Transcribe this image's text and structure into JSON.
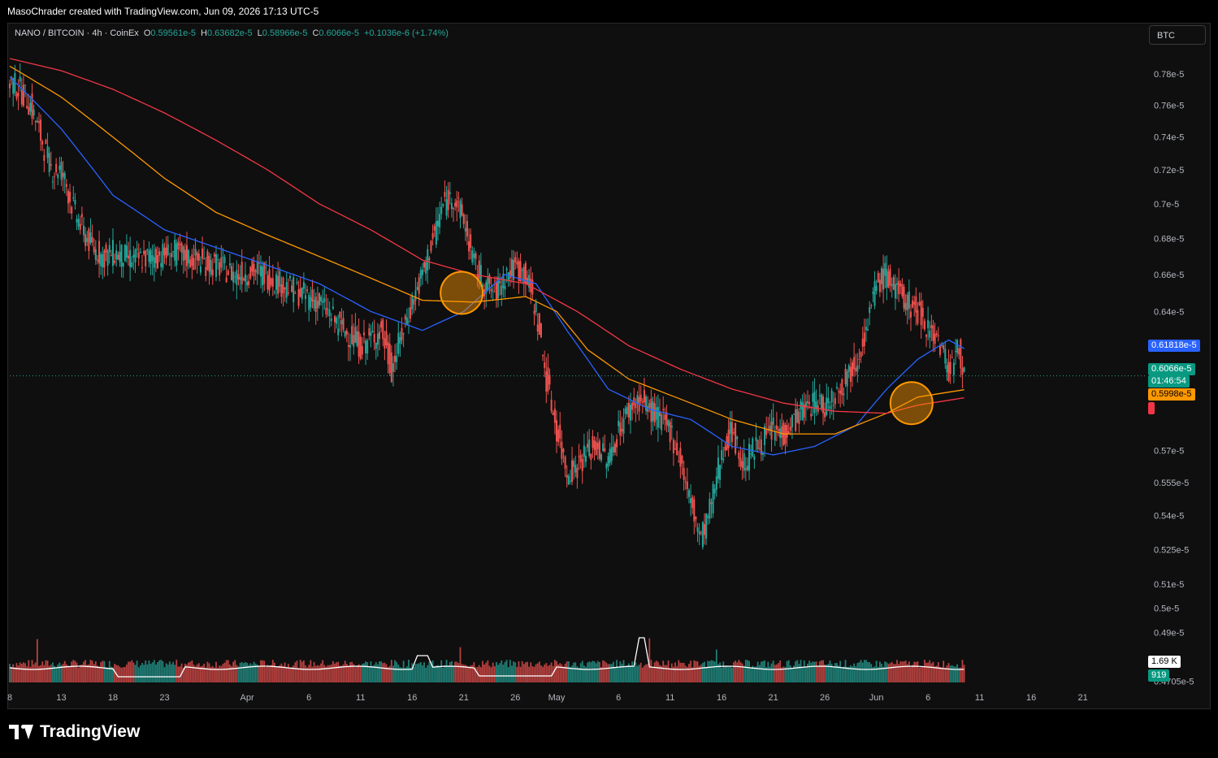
{
  "header": {
    "attribution": "MasoChrader created with TradingView.com, Jun 09, 2026 17:13 UTC-5"
  },
  "legend": {
    "symbol": "NANO / BITCOIN · 4h · CoinEx",
    "o_label": "O",
    "o_value": "0.59561e-5",
    "h_label": "H",
    "h_value": "0.63682e-5",
    "l_label": "L",
    "l_value": "0.58966e-5",
    "c_label": "C",
    "c_value": "0.6066e-5",
    "change": "+0.1036e-6 (+1.74%)"
  },
  "currency_button": "BTC",
  "badges": {
    "ma_blue": "0.61818e-5",
    "last_price": "0.6066e-5",
    "countdown": "01:46:54",
    "ma_orange": "0.5998e-5",
    "ma_red": "0.59581e-5",
    "volume_ma": "1.69 K",
    "volume": "919"
  },
  "colors": {
    "up": "#26a69a",
    "down": "#ef5350",
    "ma_fast": "#2962ff",
    "ma_mid": "#ff9800",
    "ma_slow": "#f23645",
    "highlight": "#ff9800"
  },
  "footer": {
    "brand": "TradingView"
  },
  "chart_data": {
    "type": "candlestick",
    "timeframe": "4h",
    "y_scale": "log",
    "y_ticks": [
      "0.78e-5",
      "0.76e-5",
      "0.74e-5",
      "0.72e-5",
      "0.7e-5",
      "0.68e-5",
      "0.66e-5",
      "0.64e-5",
      "0.57e-5",
      "0.555e-5",
      "0.54e-5",
      "0.525e-5",
      "0.51e-5",
      "0.5e-5",
      "0.49e-5",
      "0.4705e-5"
    ],
    "y_tick_values": [
      0.78,
      0.76,
      0.74,
      0.72,
      0.7,
      0.68,
      0.66,
      0.64,
      0.57,
      0.555,
      0.54,
      0.525,
      0.51,
      0.5,
      0.49,
      0.4705
    ],
    "ylim": [
      0.47,
      0.79
    ],
    "x_ticks": [
      "8",
      "13",
      "18",
      "23",
      "Apr",
      "6",
      "11",
      "16",
      "21",
      "26",
      "May",
      "6",
      "11",
      "16",
      "21",
      "26",
      "Jun",
      "6",
      "11",
      "16",
      "21"
    ],
    "x_tick_days": [
      0,
      5,
      10,
      15,
      23,
      29,
      34,
      39,
      44,
      49,
      53,
      59,
      64,
      69,
      74,
      79,
      84,
      89,
      94,
      99,
      104
    ],
    "x_range_days": [
      0,
      106
    ],
    "last_bar_day": 92.7,
    "series_approx": {
      "description": "Approximate closing-price path (day offset from Mar 8, price in e-5 BTC)",
      "close": [
        [
          0,
          0.775
        ],
        [
          1,
          0.77
        ],
        [
          2,
          0.76
        ],
        [
          3,
          0.74
        ],
        [
          4,
          0.72
        ],
        [
          5,
          0.72
        ],
        [
          6,
          0.7
        ],
        [
          7,
          0.685
        ],
        [
          8,
          0.675
        ],
        [
          9,
          0.67
        ],
        [
          10,
          0.672
        ],
        [
          12,
          0.668
        ],
        [
          14,
          0.67
        ],
        [
          16,
          0.672
        ],
        [
          18,
          0.668
        ],
        [
          20,
          0.665
        ],
        [
          22,
          0.66
        ],
        [
          24,
          0.662
        ],
        [
          26,
          0.656
        ],
        [
          28,
          0.65
        ],
        [
          30,
          0.645
        ],
        [
          32,
          0.632
        ],
        [
          34,
          0.622
        ],
        [
          36,
          0.63
        ],
        [
          37,
          0.61
        ],
        [
          38,
          0.628
        ],
        [
          39,
          0.645
        ],
        [
          40,
          0.66
        ],
        [
          41,
          0.68
        ],
        [
          42,
          0.7
        ],
        [
          43,
          0.705
        ],
        [
          44,
          0.69
        ],
        [
          45,
          0.665
        ],
        [
          46,
          0.655
        ],
        [
          47,
          0.65
        ],
        [
          48,
          0.66
        ],
        [
          49,
          0.664
        ],
        [
          50,
          0.66
        ],
        [
          51,
          0.64
        ],
        [
          52,
          0.605
        ],
        [
          53,
          0.58
        ],
        [
          54,
          0.56
        ],
        [
          55,
          0.563
        ],
        [
          56,
          0.57
        ],
        [
          57,
          0.572
        ],
        [
          58,
          0.565
        ],
        [
          59,
          0.58
        ],
        [
          60,
          0.59
        ],
        [
          61,
          0.595
        ],
        [
          62,
          0.59
        ],
        [
          63,
          0.585
        ],
        [
          64,
          0.58
        ],
        [
          65,
          0.565
        ],
        [
          66,
          0.545
        ],
        [
          67,
          0.53
        ],
        [
          68,
          0.545
        ],
        [
          69,
          0.57
        ],
        [
          70,
          0.58
        ],
        [
          71,
          0.563
        ],
        [
          72,
          0.57
        ],
        [
          73,
          0.575
        ],
        [
          74,
          0.58
        ],
        [
          75,
          0.578
        ],
        [
          76,
          0.585
        ],
        [
          77,
          0.59
        ],
        [
          78,
          0.594
        ],
        [
          79,
          0.592
        ],
        [
          80,
          0.598
        ],
        [
          81,
          0.605
        ],
        [
          82,
          0.615
        ],
        [
          83,
          0.63
        ],
        [
          84,
          0.655
        ],
        [
          85,
          0.66
        ],
        [
          86,
          0.65
        ],
        [
          87,
          0.645
        ],
        [
          88,
          0.64
        ],
        [
          89,
          0.632
        ],
        [
          90,
          0.625
        ],
        [
          91,
          0.61
        ],
        [
          92,
          0.62
        ],
        [
          92.7,
          0.6066
        ]
      ]
    },
    "moving_averages": [
      {
        "color": "#2962ff",
        "points": [
          [
            0,
            0.778
          ],
          [
            5,
            0.745
          ],
          [
            10,
            0.705
          ],
          [
            15,
            0.685
          ],
          [
            20,
            0.675
          ],
          [
            25,
            0.665
          ],
          [
            30,
            0.655
          ],
          [
            35,
            0.64
          ],
          [
            40,
            0.63
          ],
          [
            44,
            0.64
          ],
          [
            48,
            0.66
          ],
          [
            51,
            0.655
          ],
          [
            54,
            0.63
          ],
          [
            58,
            0.6
          ],
          [
            62,
            0.59
          ],
          [
            66,
            0.585
          ],
          [
            70,
            0.572
          ],
          [
            74,
            0.568
          ],
          [
            78,
            0.572
          ],
          [
            82,
            0.582
          ],
          [
            85,
            0.6
          ],
          [
            88,
            0.615
          ],
          [
            91,
            0.625
          ],
          [
            92.7,
            0.62
          ]
        ]
      },
      {
        "color": "#ff9800",
        "points": [
          [
            0,
            0.785
          ],
          [
            5,
            0.765
          ],
          [
            10,
            0.74
          ],
          [
            15,
            0.715
          ],
          [
            20,
            0.695
          ],
          [
            25,
            0.682
          ],
          [
            30,
            0.67
          ],
          [
            35,
            0.658
          ],
          [
            40,
            0.646
          ],
          [
            45,
            0.645
          ],
          [
            50,
            0.648
          ],
          [
            53,
            0.64
          ],
          [
            56,
            0.62
          ],
          [
            60,
            0.605
          ],
          [
            65,
            0.595
          ],
          [
            70,
            0.585
          ],
          [
            75,
            0.578
          ],
          [
            80,
            0.578
          ],
          [
            85,
            0.588
          ],
          [
            88,
            0.596
          ],
          [
            92.7,
            0.5998
          ]
        ]
      },
      {
        "color": "#f23645",
        "points": [
          [
            0,
            0.79
          ],
          [
            5,
            0.782
          ],
          [
            10,
            0.77
          ],
          [
            15,
            0.755
          ],
          [
            20,
            0.738
          ],
          [
            25,
            0.72
          ],
          [
            30,
            0.7
          ],
          [
            35,
            0.685
          ],
          [
            40,
            0.668
          ],
          [
            45,
            0.66
          ],
          [
            50,
            0.655
          ],
          [
            55,
            0.64
          ],
          [
            60,
            0.622
          ],
          [
            65,
            0.61
          ],
          [
            70,
            0.6
          ],
          [
            75,
            0.593
          ],
          [
            80,
            0.589
          ],
          [
            85,
            0.588
          ],
          [
            88,
            0.592
          ],
          [
            92.7,
            0.5958
          ]
        ]
      }
    ],
    "volume_ma_line": "white",
    "highlights": [
      {
        "day": 43.8,
        "price": 0.65,
        "color": "#ff9800"
      },
      {
        "day": 87.4,
        "price": 0.593,
        "color": "#ff9800"
      }
    ]
  }
}
